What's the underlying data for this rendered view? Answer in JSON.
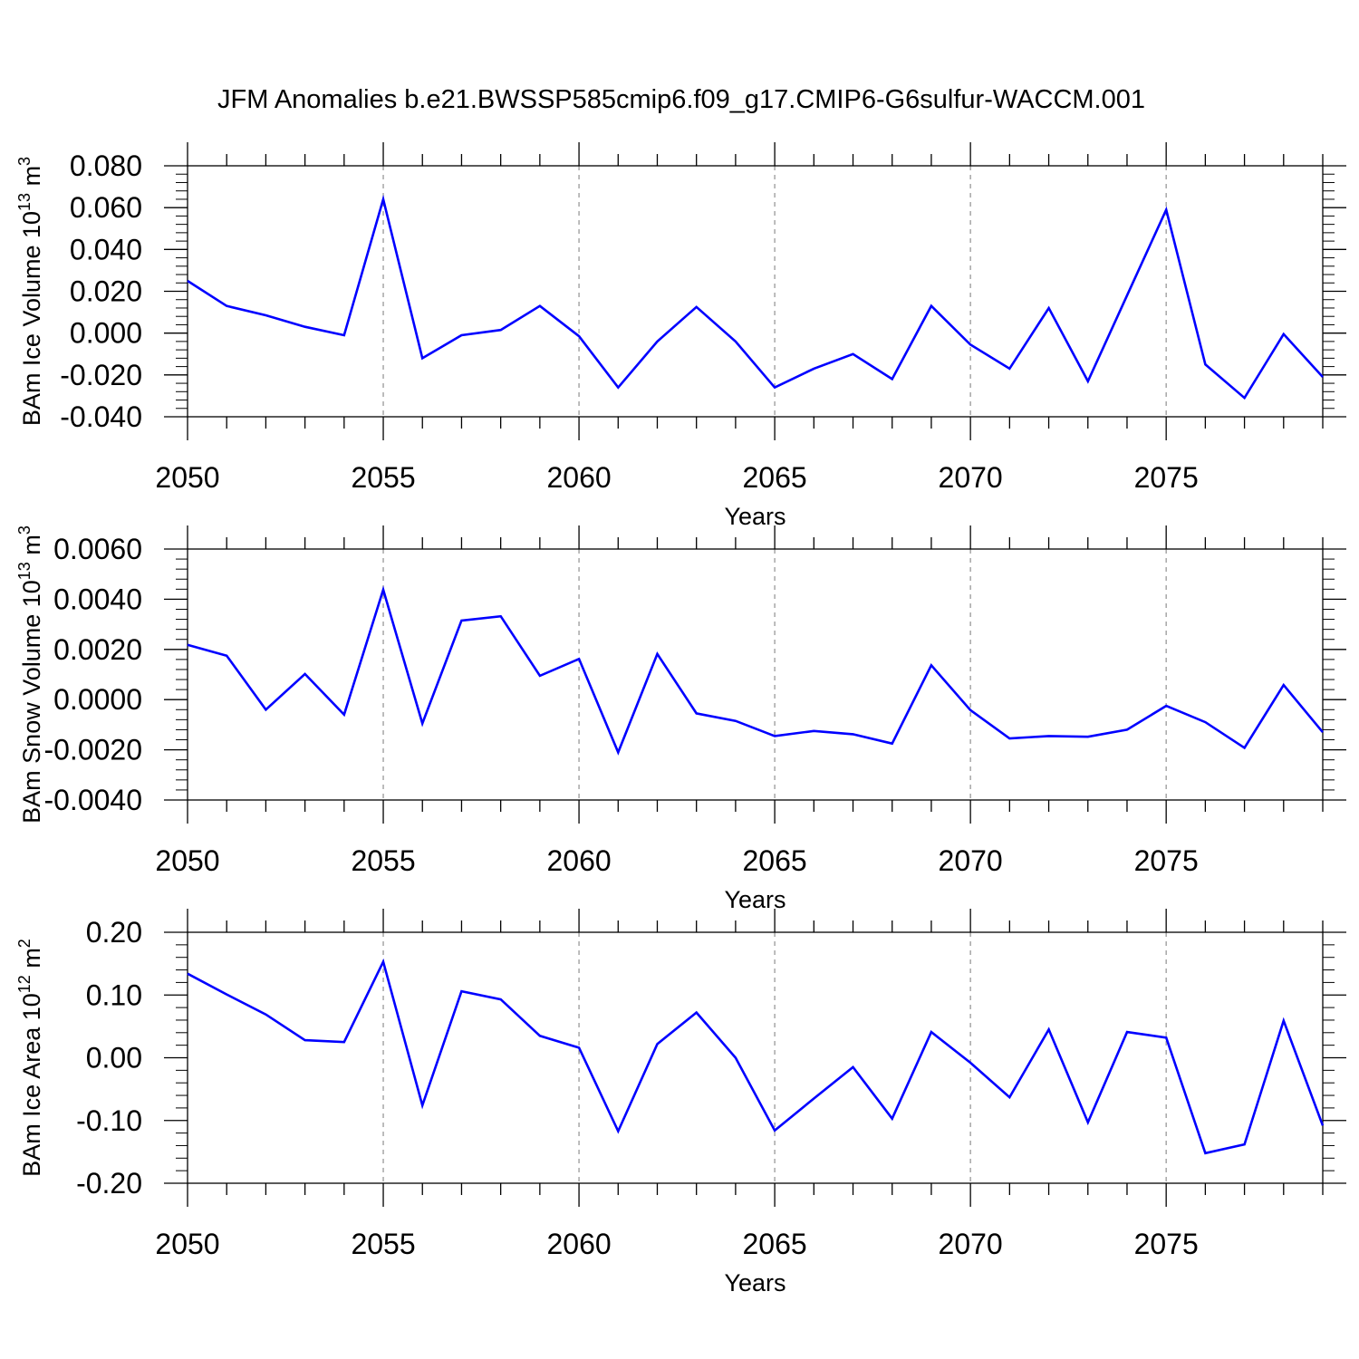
{
  "title": "JFM Anomalies b.e21.BWSSP585cmip6.f09_g17.CMIP6-G6sulfur-WACCM.001",
  "line_color": "#0000ff",
  "chart_data": [
    {
      "type": "line",
      "title": "",
      "xlabel": "Years",
      "ylabel": "BAm Ice Volume 10",
      "ylabel_sup": "13",
      "ylabel_unit": "m",
      "ylabel_unit_sup": "3",
      "xlim": [
        2050,
        2079
      ],
      "ylim": [
        -0.04,
        0.08
      ],
      "yticks": [
        "0.080",
        "0.060",
        "0.040",
        "0.020",
        "0.000",
        "-0.020",
        "-0.040"
      ],
      "yticks_values": [
        0.08,
        0.06,
        0.04,
        0.02,
        0.0,
        -0.02,
        -0.04
      ],
      "xticks": [
        "2050",
        "2055",
        "2060",
        "2065",
        "2070",
        "2075"
      ],
      "xticks_values": [
        2050,
        2055,
        2060,
        2065,
        2070,
        2075
      ],
      "grid": "vertical dashed at major x ticks",
      "series": [
        {
          "x": [
            2050,
            2051,
            2052,
            2053,
            2054,
            2055,
            2056,
            2057,
            2058,
            2059,
            2060,
            2061,
            2062,
            2063,
            2064,
            2065,
            2066,
            2067,
            2068,
            2069,
            2070,
            2071,
            2072,
            2073,
            2074,
            2075,
            2076,
            2077,
            2078,
            2079
          ],
          "values": [
            0.025,
            0.013,
            0.0085,
            0.003,
            -0.001,
            0.064,
            -0.012,
            -0.001,
            0.0015,
            0.013,
            -0.0015,
            -0.026,
            -0.004,
            0.0125,
            -0.004,
            -0.026,
            -0.017,
            -0.01,
            -0.022,
            0.013,
            -0.0055,
            -0.017,
            0.012,
            -0.023,
            0.018,
            0.059,
            -0.015,
            -0.031,
            -0.0005,
            -0.021
          ]
        }
      ]
    },
    {
      "type": "line",
      "title": "",
      "xlabel": "Years",
      "ylabel": "BAm Snow Volume 10",
      "ylabel_sup": "13",
      "ylabel_unit": "m",
      "ylabel_unit_sup": "3",
      "xlim": [
        2050,
        2079
      ],
      "ylim": [
        -0.004,
        0.006
      ],
      "yticks": [
        "0.0060",
        "0.0040",
        "0.0020",
        "0.0000",
        "-0.0020",
        "-0.0040"
      ],
      "yticks_values": [
        0.006,
        0.004,
        0.002,
        0.0,
        -0.002,
        -0.004
      ],
      "xticks": [
        "2050",
        "2055",
        "2060",
        "2065",
        "2070",
        "2075"
      ],
      "xticks_values": [
        2050,
        2055,
        2060,
        2065,
        2070,
        2075
      ],
      "grid": "vertical dashed at major x ticks",
      "series": [
        {
          "x": [
            2050,
            2051,
            2052,
            2053,
            2054,
            2055,
            2056,
            2057,
            2058,
            2059,
            2060,
            2061,
            2062,
            2063,
            2064,
            2065,
            2066,
            2067,
            2068,
            2069,
            2070,
            2071,
            2072,
            2073,
            2074,
            2075,
            2076,
            2077,
            2078,
            2079
          ],
          "values": [
            0.00218,
            0.00175,
            -0.0004,
            0.00102,
            -0.0006,
            0.00438,
            -0.00095,
            0.00315,
            0.00332,
            0.00095,
            0.00162,
            -0.0021,
            0.00182,
            -0.00055,
            -0.00085,
            -0.00145,
            -0.00125,
            -0.00138,
            -0.00175,
            0.00137,
            -0.00042,
            -0.00155,
            -0.00145,
            -0.00148,
            -0.0012,
            -0.00025,
            -0.0009,
            -0.00192,
            0.00058,
            -0.0013
          ]
        }
      ]
    },
    {
      "type": "line",
      "title": "",
      "xlabel": "Years",
      "ylabel": "BAm Ice Area 10",
      "ylabel_sup": "12",
      "ylabel_unit": "m",
      "ylabel_unit_sup": "2",
      "xlim": [
        2050,
        2079
      ],
      "ylim": [
        -0.2,
        0.2
      ],
      "yticks": [
        "0.20",
        "0.10",
        "0.00",
        "-0.10",
        "-0.20"
      ],
      "yticks_values": [
        0.2,
        0.1,
        0.0,
        -0.1,
        -0.2
      ],
      "xticks": [
        "2050",
        "2055",
        "2060",
        "2065",
        "2070",
        "2075"
      ],
      "xticks_values": [
        2050,
        2055,
        2060,
        2065,
        2070,
        2075
      ],
      "grid": "vertical dashed at major x ticks",
      "series": [
        {
          "x": [
            2050,
            2051,
            2052,
            2053,
            2054,
            2055,
            2056,
            2057,
            2058,
            2059,
            2060,
            2061,
            2062,
            2063,
            2064,
            2065,
            2066,
            2067,
            2068,
            2069,
            2070,
            2071,
            2072,
            2073,
            2074,
            2075,
            2076,
            2077,
            2078,
            2079
          ],
          "values": [
            0.134,
            0.101,
            0.069,
            0.028,
            0.025,
            0.153,
            -0.076,
            0.106,
            0.093,
            0.035,
            0.016,
            -0.117,
            0.022,
            0.072,
            0.0,
            -0.116,
            -0.065,
            -0.015,
            -0.097,
            0.041,
            -0.008,
            -0.063,
            0.045,
            -0.103,
            0.041,
            0.032,
            -0.152,
            -0.138,
            0.059,
            -0.108
          ]
        }
      ]
    }
  ]
}
